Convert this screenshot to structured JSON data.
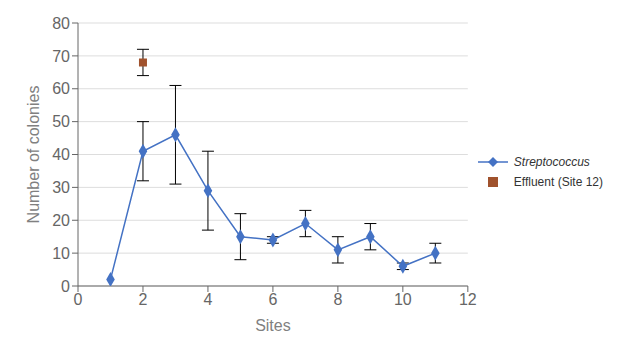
{
  "chart_data": {
    "type": "line",
    "xlabel": "Sites",
    "ylabel": "Number of colonies",
    "xlim": [
      0,
      12
    ],
    "ylim": [
      0,
      80
    ],
    "xticks": [
      0,
      2,
      4,
      6,
      8,
      10,
      12
    ],
    "yticks": [
      0,
      10,
      20,
      30,
      40,
      50,
      60,
      70,
      80
    ],
    "grid": true,
    "legend": "right",
    "series": [
      {
        "name": "Streptococcus",
        "type": "line",
        "color": "#4472C4",
        "marker": "diamond",
        "line_style": "solid",
        "x": [
          1,
          2,
          3,
          4,
          5,
          6,
          7,
          8,
          9,
          10,
          11
        ],
        "values": [
          2,
          41,
          46,
          29,
          15,
          14,
          19,
          11,
          15,
          6,
          10
        ],
        "yerr": [
          0,
          9,
          15,
          12,
          7,
          1,
          4,
          4,
          4,
          1,
          3
        ]
      },
      {
        "name": "Effluent (Site 12)",
        "type": "scatter",
        "color": "#A0522D",
        "marker": "square",
        "x": [
          2
        ],
        "values": [
          68
        ],
        "yerr": [
          4
        ]
      }
    ]
  }
}
